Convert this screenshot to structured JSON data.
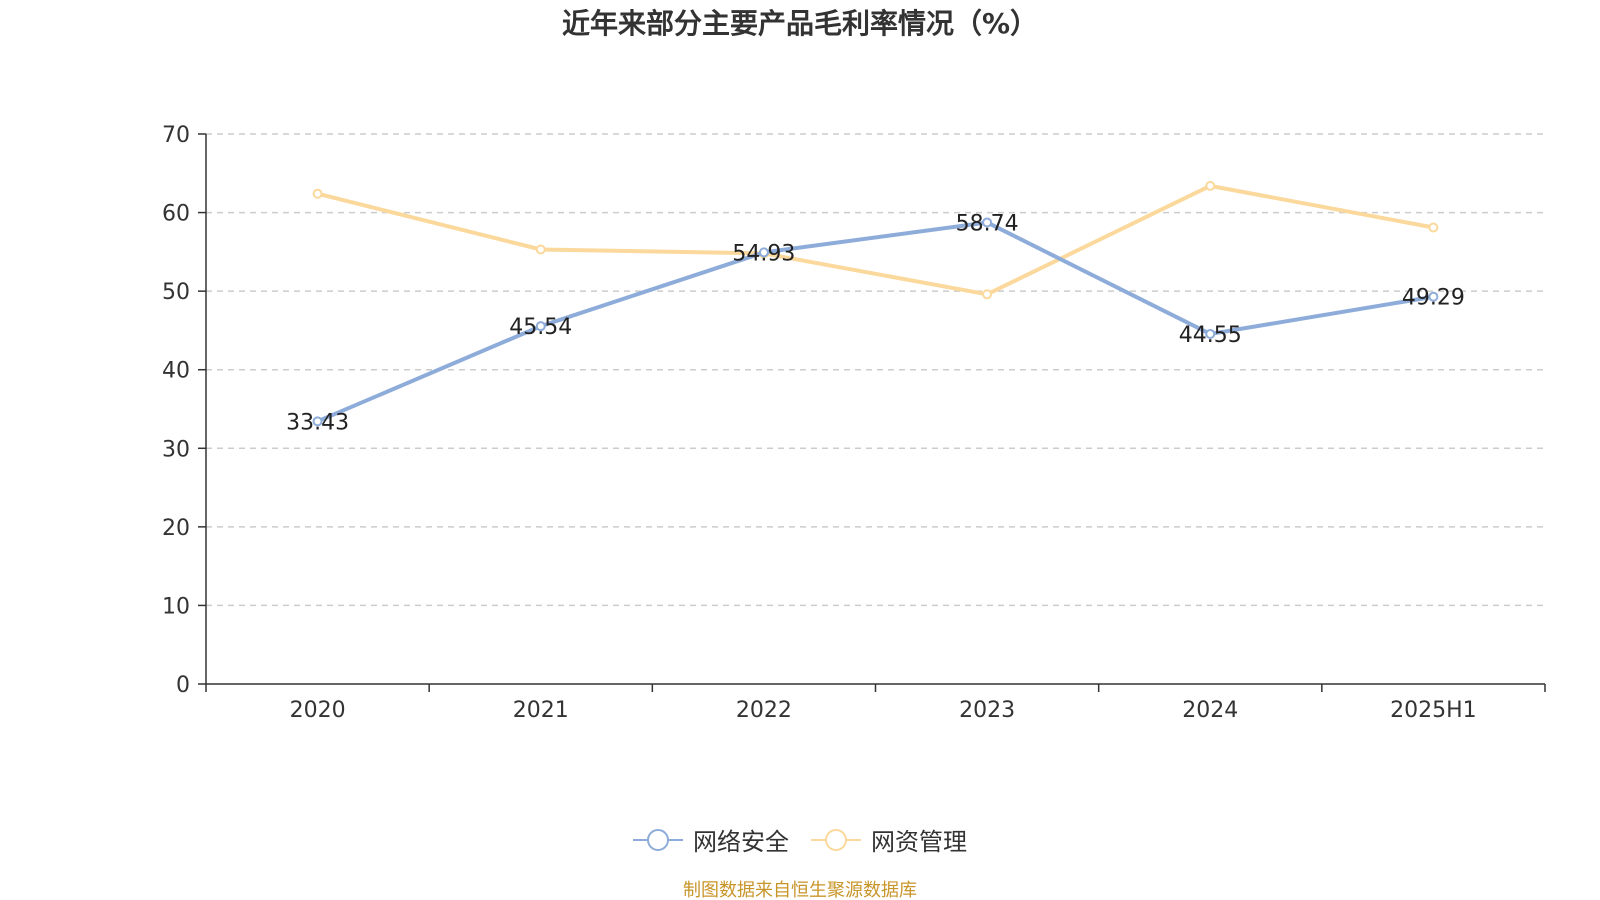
{
  "chart_data": {
    "type": "line",
    "title": "近年来部分主要产品毛利率情况（%）",
    "categories": [
      "2020",
      "2021",
      "2022",
      "2023",
      "2024",
      "2025H1"
    ],
    "ylim": [
      0,
      70
    ],
    "yticks": [
      0,
      10,
      20,
      30,
      40,
      50,
      60,
      70
    ],
    "grid": true,
    "legend_position": "bottom",
    "series": [
      {
        "name": "网络安全",
        "color": "#8eacd9",
        "values": [
          33.43,
          45.54,
          54.93,
          58.74,
          44.55,
          49.29
        ],
        "labels": [
          "33.43",
          "45.54",
          "54.93",
          "58.74",
          "44.55",
          "49.29"
        ],
        "show_labels": true
      },
      {
        "name": "网资管理",
        "color": "#fbd89c",
        "values": [
          62.4,
          55.3,
          54.8,
          49.6,
          63.4,
          58.1
        ],
        "show_labels": false
      }
    ]
  },
  "source_note": "制图数据来自恒生聚源数据库"
}
